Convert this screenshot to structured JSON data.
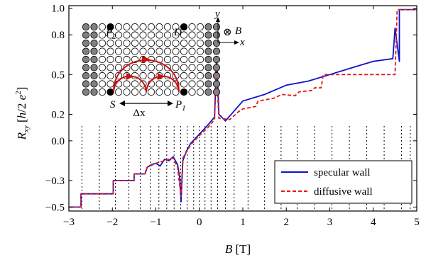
{
  "chart_data": {
    "type": "line",
    "xlabel": "B [T]",
    "ylabel": "R_xy [h/2 e^2]",
    "xlim": [
      -3,
      5
    ],
    "ylim": [
      -0.53,
      1.02
    ],
    "xticks": [
      -3,
      -2,
      -1,
      0,
      1,
      2,
      3,
      4,
      5
    ],
    "xtick_labels": [
      "−3",
      "−2",
      "−1",
      "0",
      "1",
      "2",
      "3",
      "4",
      "5"
    ],
    "yticks": [
      -0.5,
      -0.3,
      0.0,
      0.2,
      0.5,
      0.8,
      1.0
    ],
    "ytick_labels": [
      "−0.5",
      "−0.3",
      "0.0",
      "0.2",
      "0.5",
      "0.8",
      "1.0"
    ],
    "grid": false,
    "legend_position": "bottom-right",
    "landau_level_lines": [
      -2.7,
      -2.3,
      -1.93,
      -1.62,
      -1.36,
      -1.13,
      -0.93,
      -0.75,
      -0.58,
      -0.43,
      -0.28,
      -0.13,
      0.0,
      0.13,
      0.27,
      0.42,
      0.6,
      0.8,
      1.12,
      1.5,
      1.88,
      2.25,
      2.65,
      3.05,
      3.45,
      3.85,
      4.25,
      4.65,
      4.85
    ],
    "series": [
      {
        "name": "specular wall",
        "style": "solid",
        "color": "#0a14c8",
        "x": [
          -3.0,
          -2.72,
          -2.72,
          -1.98,
          -1.98,
          -1.5,
          -1.5,
          -1.25,
          -1.2,
          -1.1,
          -1.0,
          -0.9,
          -0.8,
          -0.7,
          -0.6,
          -0.5,
          -0.45,
          -0.42,
          -0.38,
          -0.3,
          -0.2,
          0.0,
          0.2,
          0.35,
          0.4,
          0.45,
          0.6,
          1.0,
          1.5,
          2.0,
          2.5,
          3.0,
          3.5,
          4.0,
          4.45,
          4.5,
          4.6,
          4.6,
          5.0
        ],
        "y": [
          -0.5,
          -0.5,
          -0.4,
          -0.4,
          -0.3,
          -0.3,
          -0.25,
          -0.25,
          -0.2,
          -0.18,
          -0.17,
          -0.19,
          -0.14,
          -0.15,
          -0.12,
          -0.18,
          -0.28,
          -0.46,
          -0.15,
          -0.08,
          -0.02,
          0.05,
          0.12,
          0.18,
          0.63,
          0.2,
          0.15,
          0.3,
          0.35,
          0.42,
          0.45,
          0.5,
          0.55,
          0.6,
          0.62,
          0.85,
          0.6,
          0.99,
          0.99
        ]
      },
      {
        "name": "diffusive wall",
        "style": "dashed",
        "color": "#e01818",
        "x": [
          -3.0,
          -2.72,
          -2.72,
          -1.98,
          -1.98,
          -1.5,
          -1.5,
          -1.25,
          -1.2,
          -1.0,
          -0.8,
          -0.6,
          -0.5,
          -0.42,
          -0.38,
          -0.2,
          0.0,
          0.2,
          0.35,
          0.38,
          0.45,
          0.7,
          0.9,
          1.0,
          1.3,
          1.35,
          1.7,
          1.9,
          2.2,
          2.3,
          2.6,
          2.65,
          2.8,
          2.85,
          4.5,
          4.55,
          5.0
        ],
        "y": [
          -0.5,
          -0.5,
          -0.4,
          -0.4,
          -0.3,
          -0.3,
          -0.25,
          -0.25,
          -0.2,
          -0.17,
          -0.15,
          -0.13,
          -0.2,
          -0.42,
          -0.13,
          -0.03,
          0.04,
          0.1,
          0.16,
          0.6,
          0.17,
          0.16,
          0.22,
          0.24,
          0.26,
          0.3,
          0.32,
          0.35,
          0.34,
          0.37,
          0.38,
          0.4,
          0.4,
          0.5,
          0.5,
          0.99,
          0.99
        ]
      }
    ]
  },
  "inset": {
    "labels": {
      "p2_letter": "P",
      "p2_sub": "2",
      "d": "D",
      "s": "S",
      "p1_letter": "P",
      "p1_sub": "1",
      "dx": "Δx",
      "axis_y": "y",
      "axis_x": "x",
      "axis_b_symbol": "⊗",
      "axis_b": "B"
    }
  },
  "legend": {
    "items": [
      "specular wall",
      "diffusive wall"
    ]
  }
}
